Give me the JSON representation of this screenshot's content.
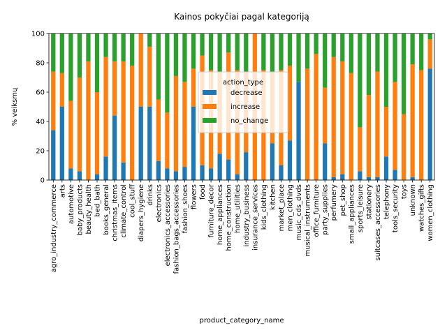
{
  "chart_data": {
    "type": "bar",
    "stacked": true,
    "title": "Kainos pokyčiai pagal kategoriją",
    "xlabel": "product_category_name",
    "ylabel": "% veiksmų",
    "ylim": [
      0,
      100
    ],
    "yticks": [
      0,
      20,
      40,
      60,
      80,
      100
    ],
    "grid": false,
    "legend": {
      "title": "action_type",
      "placement": "center"
    },
    "categories": [
      "agro_industry_commerce",
      "arts",
      "automotive",
      "baby_products",
      "beauty_health",
      "bed_bath",
      "books_general",
      "christmas_items",
      "climate_control",
      "cool_stuff",
      "diapers_hygiene",
      "drinks",
      "electronics",
      "electronics_accessories",
      "fashion_bags_accessories",
      "fashion_shoes",
      "flowers",
      "food",
      "furniture_decor",
      "home_appliances",
      "home_construction",
      "home_utilities",
      "industry_business",
      "insurance_services",
      "kids_clothing",
      "kitchen",
      "market_place",
      "men_clothing",
      "music_cds_dvds",
      "musical_instruments",
      "office_furniture",
      "party_supplies",
      "perfumery",
      "pet_shop",
      "small_appliances",
      "sports_leisure",
      "stationery",
      "suitcases_accessories",
      "telephony",
      "tools_security",
      "toys",
      "unknown",
      "watches_gifts",
      "women_clothing"
    ],
    "series": [
      {
        "name": "decrease",
        "color": "#1f77b4",
        "values": [
          34,
          50,
          8,
          6,
          0,
          4,
          16,
          44,
          12,
          0,
          50,
          50,
          13,
          8,
          6,
          9,
          50,
          10,
          8,
          18,
          14,
          4,
          19,
          0,
          0,
          25,
          10,
          27,
          67,
          0,
          0,
          25,
          2,
          4,
          0,
          6,
          2,
          2,
          16,
          7,
          0,
          2,
          0,
          76
        ]
      },
      {
        "name": "increase",
        "color": "#ff7f0e",
        "values": [
          40,
          23,
          46,
          64,
          81,
          56,
          68,
          37,
          69,
          78,
          50,
          41,
          42,
          38,
          65,
          58,
          26,
          75,
          67,
          56,
          73,
          71,
          55,
          100,
          75,
          48,
          65,
          51,
          0,
          76,
          86,
          38,
          82,
          77,
          73,
          30,
          56,
          72,
          34,
          60,
          45,
          77,
          75,
          20
        ]
      },
      {
        "name": "no_change",
        "color": "#2ca02c",
        "values": [
          26,
          27,
          46,
          30,
          19,
          40,
          16,
          19,
          19,
          22,
          0,
          9,
          45,
          54,
          29,
          33,
          24,
          15,
          25,
          26,
          13,
          25,
          26,
          0,
          25,
          27,
          25,
          22,
          33,
          24,
          14,
          37,
          16,
          19,
          27,
          64,
          42,
          26,
          50,
          33,
          55,
          21,
          25,
          4
        ]
      }
    ]
  }
}
